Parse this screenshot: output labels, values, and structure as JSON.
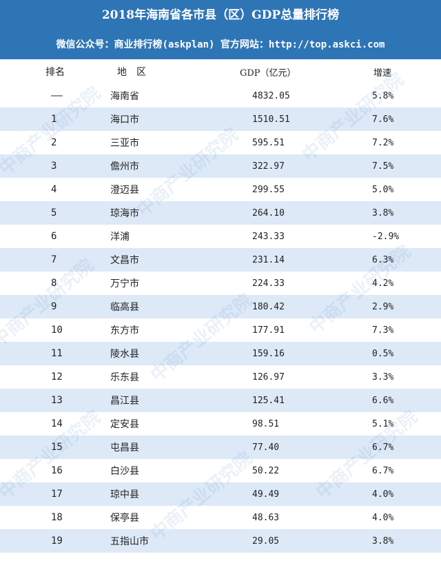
{
  "title": "2018年海南省各市县（区）GDP总量排行榜",
  "subtitle": "微信公众号：商业排行榜(askplan) 官方网站：http://top.askci.com",
  "watermark": "中商产业研究院",
  "colors": {
    "header_bg": "#2e75b6",
    "stripe": "#dde9f7"
  },
  "table": {
    "headers": {
      "rank": "排名",
      "region": "地　区",
      "gdp": "GDP（亿元）",
      "growth": "增速"
    },
    "rows": [
      {
        "rank": "——",
        "region": "海南省",
        "gdp": "4832.05",
        "growth": "5.8%"
      },
      {
        "rank": "1",
        "region": "海口市",
        "gdp": "1510.51",
        "growth": "7.6%"
      },
      {
        "rank": "2",
        "region": "三亚市",
        "gdp": "595.51",
        "growth": "7.2%"
      },
      {
        "rank": "3",
        "region": "儋州市",
        "gdp": "322.97",
        "growth": "7.5%"
      },
      {
        "rank": "4",
        "region": "澄迈县",
        "gdp": "299.55",
        "growth": "5.0%"
      },
      {
        "rank": "5",
        "region": "琼海市",
        "gdp": "264.10",
        "growth": "3.8%"
      },
      {
        "rank": "6",
        "region": "洋浦",
        "gdp": "243.33",
        "growth": "-2.9%"
      },
      {
        "rank": "7",
        "region": "文昌市",
        "gdp": "231.14",
        "growth": "6.3%"
      },
      {
        "rank": "8",
        "region": "万宁市",
        "gdp": "224.33",
        "growth": "4.2%"
      },
      {
        "rank": "9",
        "region": "临高县",
        "gdp": "180.42",
        "growth": "2.9%"
      },
      {
        "rank": "10",
        "region": "东方市",
        "gdp": "177.91",
        "growth": "7.3%"
      },
      {
        "rank": "11",
        "region": "陵水县",
        "gdp": "159.16",
        "growth": "0.5%"
      },
      {
        "rank": "12",
        "region": "乐东县",
        "gdp": "126.97",
        "growth": "3.3%"
      },
      {
        "rank": "13",
        "region": "昌江县",
        "gdp": "125.41",
        "growth": "6.6%"
      },
      {
        "rank": "14",
        "region": "定安县",
        "gdp": "98.51",
        "growth": "5.1%"
      },
      {
        "rank": "15",
        "region": "屯昌县",
        "gdp": "77.40",
        "growth": "6.7%"
      },
      {
        "rank": "16",
        "region": "白沙县",
        "gdp": "50.22",
        "growth": "6.7%"
      },
      {
        "rank": "17",
        "region": "琼中县",
        "gdp": "49.49",
        "growth": "4.0%"
      },
      {
        "rank": "18",
        "region": "保亭县",
        "gdp": "48.63",
        "growth": "4.0%"
      },
      {
        "rank": "19",
        "region": "五指山市",
        "gdp": "29.05",
        "growth": "3.8%"
      }
    ]
  }
}
